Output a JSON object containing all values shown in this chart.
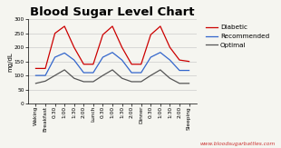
{
  "title": "Blood Sugar Level Chart",
  "ylabel": "mg/dL",
  "watermark": "www.bloodsugarbattles.com",
  "x_labels": [
    "Waking",
    "Breakfast",
    "0:30",
    "1:00",
    "1:30",
    "2:00",
    "Lunch",
    "0:30",
    "1:00",
    "1:30",
    "2:00",
    "Dinner",
    "0:30",
    "1:00",
    "1:30",
    "2:00",
    "Sleeping"
  ],
  "diabetic": [
    125,
    125,
    250,
    275,
    200,
    140,
    140,
    245,
    275,
    200,
    140,
    140,
    245,
    275,
    200,
    155,
    150
  ],
  "recommended": [
    100,
    100,
    165,
    180,
    155,
    110,
    110,
    165,
    182,
    155,
    110,
    110,
    165,
    182,
    155,
    118,
    118
  ],
  "optimal": [
    72,
    80,
    100,
    120,
    90,
    78,
    78,
    100,
    120,
    90,
    78,
    78,
    100,
    120,
    90,
    72,
    72
  ],
  "ylim": [
    0,
    300
  ],
  "yticks": [
    0,
    50,
    100,
    150,
    200,
    250,
    300
  ],
  "diabetic_color": "#cc0000",
  "recommended_color": "#3366cc",
  "optimal_color": "#555555",
  "background_color": "#f5f5f0",
  "grid_color": "#cccccc",
  "title_fontsize": 9.5,
  "label_fontsize": 5.0,
  "tick_fontsize": 4.2,
  "legend_fontsize": 5.2,
  "watermark_fontsize": 4.2,
  "watermark_color": "#cc3333"
}
